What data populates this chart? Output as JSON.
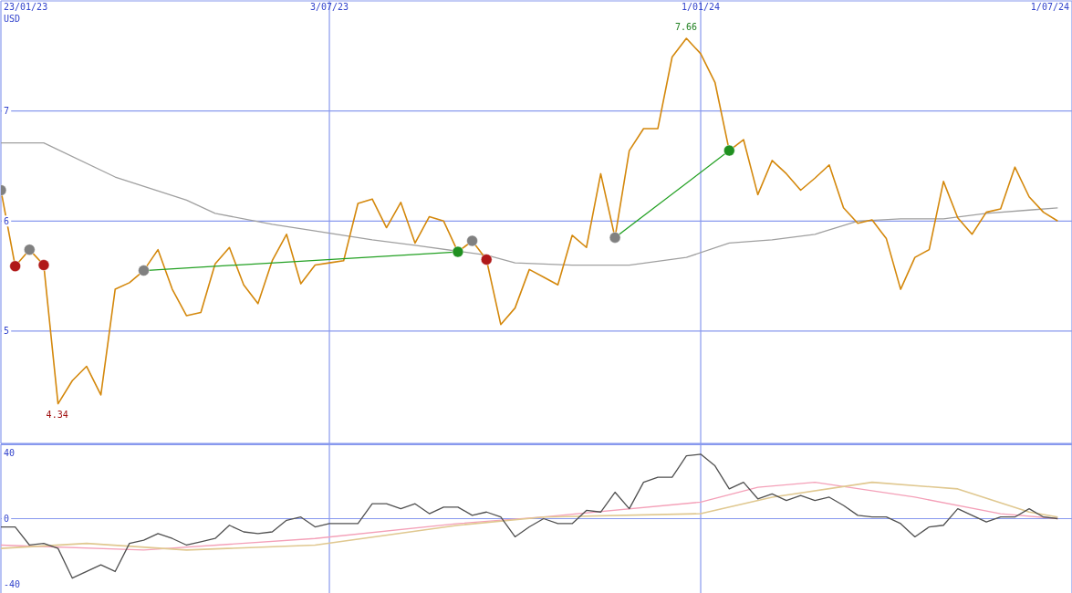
{
  "chart_data": [
    {
      "type": "line",
      "annotations": [
        "USD",
        {
          "text": "7.66",
          "x": "2023-12-25",
          "y": 7.66
        },
        {
          "text": "4.34",
          "x": "2023-02-20",
          "y": 4.34
        }
      ],
      "x": [
        "2023-01-23",
        "2023-01-30",
        "2023-02-06",
        "2023-02-13",
        "2023-02-20",
        "2023-02-27",
        "2023-03-06",
        "2023-03-13",
        "2023-03-20",
        "2023-03-27",
        "2023-04-03",
        "2023-04-10",
        "2023-04-17",
        "2023-04-24",
        "2023-05-01",
        "2023-05-08",
        "2023-05-15",
        "2023-05-22",
        "2023-05-29",
        "2023-06-05",
        "2023-06-12",
        "2023-06-19",
        "2023-06-26",
        "2023-07-03",
        "2023-07-10",
        "2023-07-17",
        "2023-07-24",
        "2023-07-31",
        "2023-08-07",
        "2023-08-14",
        "2023-08-21",
        "2023-08-28",
        "2023-09-04",
        "2023-09-11",
        "2023-09-18",
        "2023-09-25",
        "2023-10-02",
        "2023-10-09",
        "2023-10-16",
        "2023-10-23",
        "2023-10-30",
        "2023-11-06",
        "2023-11-13",
        "2023-11-20",
        "2023-11-27",
        "2023-12-04",
        "2023-12-11",
        "2023-12-18",
        "2023-12-25",
        "2024-01-01",
        "2024-01-08",
        "2024-01-15",
        "2024-01-22",
        "2024-01-29",
        "2024-02-05",
        "2024-02-12",
        "2024-02-19",
        "2024-02-26",
        "2024-03-04",
        "2024-03-11",
        "2024-03-18",
        "2024-03-25",
        "2024-04-01",
        "2024-04-08",
        "2024-04-15",
        "2024-04-22",
        "2024-04-29",
        "2024-05-06",
        "2024-05-13",
        "2024-05-20",
        "2024-05-27",
        "2024-06-03",
        "2024-06-10",
        "2024-06-17",
        "2024-06-24"
      ],
      "series": [
        {
          "color": "#a0a0a0",
          "x": [
            "2023-01-23",
            "2023-02-13",
            "2023-03-20",
            "2023-04-24",
            "2023-05-08",
            "2023-06-05",
            "2023-06-26",
            "2023-07-24",
            "2023-08-14",
            "2023-09-18",
            "2023-10-02",
            "2023-10-30",
            "2023-11-27",
            "2023-12-25",
            "2024-01-15",
            "2024-02-05",
            "2024-02-26",
            "2024-03-18",
            "2024-04-08",
            "2024-04-29",
            "2024-05-20",
            "2024-06-10",
            "2024-06-24"
          ],
          "values": [
            6.71,
            6.71,
            6.4,
            6.19,
            6.07,
            5.97,
            5.91,
            5.83,
            5.78,
            5.69,
            5.62,
            5.6,
            5.6,
            5.67,
            5.8,
            5.83,
            5.88,
            6.0,
            6.02,
            6.02,
            6.07,
            6.1,
            6.12
          ]
        },
        {
          "color": "#d4880c",
          "values": [
            6.28,
            5.59,
            5.74,
            5.6,
            4.34,
            4.55,
            4.68,
            4.42,
            5.38,
            5.44,
            5.55,
            5.74,
            5.38,
            5.14,
            5.17,
            5.61,
            5.76,
            5.42,
            5.25,
            5.64,
            5.88,
            5.43,
            5.6,
            5.62,
            5.64,
            6.16,
            6.2,
            5.94,
            6.17,
            5.8,
            6.04,
            6.0,
            5.72,
            5.82,
            5.65,
            5.06,
            5.21,
            5.56,
            5.49,
            5.42,
            5.87,
            5.76,
            6.43,
            5.85,
            6.64,
            6.84,
            6.84,
            7.49,
            7.66,
            7.52,
            7.26,
            6.64,
            6.74,
            6.24,
            6.55,
            6.43,
            6.28,
            6.39,
            6.51,
            6.12,
            5.98,
            6.01,
            5.84,
            5.38,
            5.67,
            5.74,
            6.36,
            6.03,
            5.88,
            6.08,
            6.11,
            6.49,
            6.22,
            6.08,
            6.0
          ]
        },
        {
          "color": "#22a022",
          "x": [
            "2023-04-03",
            "2023-09-04"
          ],
          "values": [
            5.55,
            5.72
          ]
        },
        {
          "color": "#22a022",
          "x": [
            "2023-11-20",
            "2024-01-15"
          ],
          "values": [
            5.85,
            6.64
          ]
        },
        {
          "type": "scatter",
          "marker": "circle",
          "color": "#808080",
          "x": [
            "2023-01-23",
            "2023-02-06",
            "2023-04-03",
            "2023-09-11",
            "2023-11-20"
          ],
          "values": [
            6.28,
            5.74,
            5.55,
            5.82,
            5.85
          ]
        },
        {
          "type": "scatter",
          "marker": "circle",
          "color": "#b01818",
          "x": [
            "2023-01-30",
            "2023-02-13",
            "2023-09-18"
          ],
          "values": [
            5.59,
            5.6,
            5.65
          ]
        },
        {
          "type": "scatter",
          "marker": "circle",
          "color": "#209020",
          "x": [
            "2023-09-04",
            "2024-01-15"
          ],
          "values": [
            5.72,
            6.64
          ]
        }
      ],
      "xlim": [
        "2023-01-23",
        "2024-07-01"
      ],
      "xticks": [
        {
          "value": "2023-01-23",
          "label": "23/01/23"
        },
        {
          "value": "2023-07-03",
          "label": "3/07/23"
        },
        {
          "value": "2024-01-01",
          "label": "1/01/24"
        },
        {
          "value": "2024-07-01",
          "label": "1/07/24"
        }
      ],
      "ylim": [
        3.98,
        8.0
      ],
      "yticks": [
        5,
        6,
        7
      ],
      "grid": true,
      "marker": "none",
      "legend": false
    },
    {
      "type": "line",
      "x": [
        "2023-01-23",
        "2023-01-30",
        "2023-02-06",
        "2023-02-13",
        "2023-02-20",
        "2023-02-27",
        "2023-03-06",
        "2023-03-13",
        "2023-03-20",
        "2023-03-27",
        "2023-04-03",
        "2023-04-10",
        "2023-04-17",
        "2023-04-24",
        "2023-05-01",
        "2023-05-08",
        "2023-05-15",
        "2023-05-22",
        "2023-05-29",
        "2023-06-05",
        "2023-06-12",
        "2023-06-19",
        "2023-06-26",
        "2023-07-03",
        "2023-07-10",
        "2023-07-17",
        "2023-07-24",
        "2023-07-31",
        "2023-08-07",
        "2023-08-14",
        "2023-08-21",
        "2023-08-28",
        "2023-09-04",
        "2023-09-11",
        "2023-09-18",
        "2023-09-25",
        "2023-10-02",
        "2023-10-09",
        "2023-10-16",
        "2023-10-23",
        "2023-10-30",
        "2023-11-06",
        "2023-11-13",
        "2023-11-20",
        "2023-11-27",
        "2023-12-04",
        "2023-12-11",
        "2023-12-18",
        "2023-12-25",
        "2024-01-01",
        "2024-01-08",
        "2024-01-15",
        "2024-01-22",
        "2024-01-29",
        "2024-02-05",
        "2024-02-12",
        "2024-02-19",
        "2024-02-26",
        "2024-03-04",
        "2024-03-11",
        "2024-03-18",
        "2024-03-25",
        "2024-04-01",
        "2024-04-08",
        "2024-04-15",
        "2024-04-22",
        "2024-04-29",
        "2024-05-06",
        "2024-05-13",
        "2024-05-20",
        "2024-05-27",
        "2024-06-03",
        "2024-06-10",
        "2024-06-17",
        "2024-06-24"
      ],
      "series": [
        {
          "color": "#f4a0b8",
          "x": [
            "2023-01-23",
            "2023-04-03",
            "2023-06-26",
            "2023-09-04",
            "2023-10-16",
            "2024-01-01",
            "2024-01-29",
            "2024-02-26",
            "2024-04-15",
            "2024-05-27",
            "2024-06-24"
          ],
          "values": [
            -16,
            -19,
            -12,
            -3,
            1,
            10,
            19,
            22,
            13,
            3,
            0
          ]
        },
        {
          "color": "#e0c890",
          "x": [
            "2023-01-23",
            "2023-03-06",
            "2023-04-24",
            "2023-06-26",
            "2023-09-04",
            "2023-10-16",
            "2024-01-01",
            "2024-02-05",
            "2024-03-25",
            "2024-05-06",
            "2024-06-10",
            "2024-06-24"
          ],
          "values": [
            -18,
            -15,
            -19,
            -16,
            -4,
            1,
            3,
            13,
            22,
            18,
            4,
            1
          ]
        },
        {
          "color": "#505050",
          "values": [
            -5,
            -5,
            -16,
            -15,
            -18,
            -36,
            -32,
            -28,
            -32,
            -15,
            -13,
            -9,
            -12,
            -16,
            -14,
            -12,
            -4,
            -8,
            -9,
            -8,
            -1,
            1,
            -5,
            -3,
            -3,
            -3,
            9,
            9,
            6,
            9,
            3,
            7,
            7,
            2,
            4,
            1,
            -11,
            -5,
            0,
            -3,
            -3,
            5,
            4,
            16,
            6,
            22,
            25,
            25,
            38,
            39,
            32,
            18,
            22,
            12,
            15,
            11,
            14,
            11,
            13,
            8,
            2,
            1,
            1,
            -3,
            -11,
            -5,
            -4,
            6,
            2,
            -2,
            1,
            1,
            6,
            1,
            0
          ]
        }
      ],
      "xlim": [
        "2023-01-23",
        "2024-07-01"
      ],
      "xticks": [
        {
          "value": "2023-01-23",
          "label": null
        },
        {
          "value": "2023-07-03",
          "label": null
        },
        {
          "value": "2024-01-01",
          "label": null
        },
        {
          "value": "2024-07-01",
          "label": null
        }
      ],
      "ylim": [
        -45,
        45
      ],
      "yticks": [
        40,
        0,
        -40
      ],
      "grid": "x",
      "tick_labels": "y",
      "ref_lines": [
        {
          "axis": "y",
          "value": 0,
          "color": "#8899ee"
        }
      ],
      "marker": "none",
      "legend": false
    }
  ]
}
